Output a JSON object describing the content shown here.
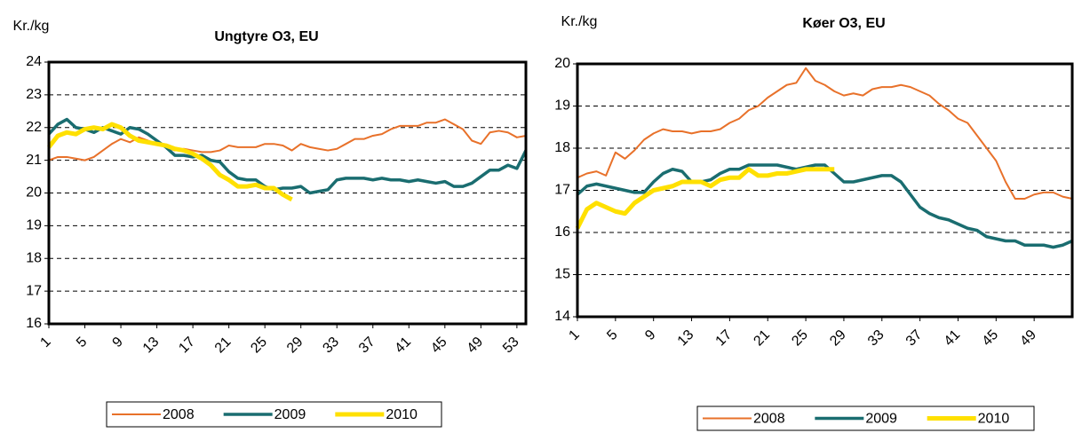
{
  "chart_data": [
    {
      "type": "line",
      "title": "Ungtyre O3, EU",
      "y_label": "Kr./kg",
      "x": [
        1,
        2,
        3,
        4,
        5,
        6,
        7,
        8,
        9,
        10,
        11,
        12,
        13,
        14,
        15,
        16,
        17,
        18,
        19,
        20,
        21,
        22,
        23,
        24,
        25,
        26,
        27,
        28,
        29,
        30,
        31,
        32,
        33,
        34,
        35,
        36,
        37,
        38,
        39,
        40,
        41,
        42,
        43,
        44,
        45,
        46,
        47,
        48,
        49,
        50,
        51,
        52,
        53,
        54
      ],
      "xlim": [
        1,
        54
      ],
      "xticks": [
        1,
        5,
        9,
        13,
        17,
        21,
        25,
        29,
        33,
        37,
        41,
        45,
        49,
        53
      ],
      "ylim": [
        16,
        24
      ],
      "yticks": [
        16,
        17,
        18,
        19,
        20,
        21,
        22,
        23,
        24
      ],
      "grid": true,
      "legend": "bottom",
      "series": [
        {
          "name": "2008",
          "color": "#e8712a",
          "values": [
            21.0,
            21.1,
            21.1,
            21.05,
            21.0,
            21.1,
            21.3,
            21.5,
            21.65,
            21.55,
            21.7,
            21.6,
            21.5,
            21.4,
            21.3,
            21.35,
            21.3,
            21.25,
            21.25,
            21.3,
            21.45,
            21.4,
            21.4,
            21.4,
            21.5,
            21.5,
            21.45,
            21.3,
            21.5,
            21.4,
            21.35,
            21.3,
            21.35,
            21.5,
            21.65,
            21.65,
            21.75,
            21.8,
            21.95,
            22.05,
            22.05,
            22.05,
            22.15,
            22.15,
            22.25,
            22.1,
            21.95,
            21.6,
            21.5,
            21.85,
            21.9,
            21.85,
            21.7,
            21.75
          ]
        },
        {
          "name": "2009",
          "color": "#1a6d70",
          "values": [
            21.8,
            22.1,
            22.25,
            22.0,
            21.95,
            21.85,
            22.0,
            21.9,
            21.8,
            22.0,
            21.95,
            21.8,
            21.6,
            21.4,
            21.15,
            21.15,
            21.1,
            21.15,
            21.0,
            20.95,
            20.65,
            20.45,
            20.4,
            20.4,
            20.2,
            20.1,
            20.15,
            20.15,
            20.2,
            20.0,
            20.05,
            20.1,
            20.4,
            20.45,
            20.45,
            20.45,
            20.4,
            20.45,
            20.4,
            20.4,
            20.35,
            20.4,
            20.35,
            20.3,
            20.35,
            20.2,
            20.2,
            20.3,
            20.5,
            20.7,
            20.7,
            20.85,
            20.75,
            21.3
          ]
        },
        {
          "name": "2010",
          "color": "#ffe000",
          "values": [
            21.4,
            21.75,
            21.85,
            21.8,
            21.95,
            22.0,
            21.95,
            22.1,
            22.0,
            21.75,
            21.6,
            21.55,
            21.5,
            21.45,
            21.35,
            21.3,
            21.2,
            21.05,
            20.85,
            20.55,
            20.4,
            20.2,
            20.2,
            20.25,
            20.15,
            20.15,
            19.95,
            19.8,
            null,
            null,
            null,
            null,
            null,
            null,
            null,
            null,
            null,
            null,
            null,
            null,
            null,
            null,
            null,
            null,
            null,
            null,
            null,
            null,
            null,
            null,
            null,
            null,
            null,
            null
          ]
        }
      ]
    },
    {
      "type": "line",
      "title": "Køer O3, EU",
      "y_label": "Kr./kg",
      "x": [
        1,
        2,
        3,
        4,
        5,
        6,
        7,
        8,
        9,
        10,
        11,
        12,
        13,
        14,
        15,
        16,
        17,
        18,
        19,
        20,
        21,
        22,
        23,
        24,
        25,
        26,
        27,
        28,
        29,
        30,
        31,
        32,
        33,
        34,
        35,
        36,
        37,
        38,
        39,
        40,
        41,
        42,
        43,
        44,
        45,
        46,
        47,
        48,
        49,
        50,
        51,
        52,
        53
      ],
      "xlim": [
        1,
        53
      ],
      "xticks": [
        1,
        5,
        9,
        13,
        17,
        21,
        25,
        29,
        33,
        37,
        41,
        45,
        49
      ],
      "ylim": [
        14,
        20
      ],
      "yticks": [
        14,
        15,
        16,
        17,
        18,
        19,
        20
      ],
      "grid": true,
      "legend": "bottom",
      "series": [
        {
          "name": "2008",
          "color": "#e8712a",
          "values": [
            17.3,
            17.4,
            17.45,
            17.35,
            17.9,
            17.75,
            17.95,
            18.2,
            18.35,
            18.45,
            18.4,
            18.4,
            18.35,
            18.4,
            18.4,
            18.45,
            18.6,
            18.7,
            18.9,
            19.0,
            19.2,
            19.35,
            19.5,
            19.55,
            19.9,
            19.6,
            19.5,
            19.35,
            19.25,
            19.3,
            19.25,
            19.4,
            19.45,
            19.45,
            19.5,
            19.45,
            19.35,
            19.25,
            19.05,
            18.9,
            18.7,
            18.6,
            18.3,
            18.0,
            17.7,
            17.2,
            16.8,
            16.8,
            16.9,
            16.95,
            16.95,
            16.85,
            16.8
          ]
        },
        {
          "name": "2009",
          "color": "#1a6d70",
          "values": [
            16.9,
            17.1,
            17.15,
            17.1,
            17.05,
            17.0,
            16.95,
            16.95,
            17.2,
            17.4,
            17.5,
            17.45,
            17.2,
            17.2,
            17.25,
            17.4,
            17.5,
            17.5,
            17.6,
            17.6,
            17.6,
            17.6,
            17.55,
            17.5,
            17.55,
            17.6,
            17.6,
            17.4,
            17.2,
            17.2,
            17.25,
            17.3,
            17.35,
            17.35,
            17.2,
            16.9,
            16.6,
            16.45,
            16.35,
            16.3,
            16.2,
            16.1,
            16.05,
            15.9,
            15.85,
            15.8,
            15.8,
            15.7,
            15.7,
            15.7,
            15.65,
            15.7,
            15.8
          ]
        },
        {
          "name": "2010",
          "color": "#ffe000",
          "values": [
            16.1,
            16.55,
            16.7,
            16.6,
            16.5,
            16.45,
            16.7,
            16.85,
            17.0,
            17.05,
            17.1,
            17.2,
            17.2,
            17.2,
            17.1,
            17.25,
            17.3,
            17.3,
            17.5,
            17.35,
            17.35,
            17.4,
            17.4,
            17.45,
            17.5,
            17.5,
            17.5,
            17.5,
            null,
            null,
            null,
            null,
            null,
            null,
            null,
            null,
            null,
            null,
            null,
            null,
            null,
            null,
            null,
            null,
            null,
            null,
            null,
            null,
            null,
            null,
            null,
            null,
            null
          ]
        }
      ]
    }
  ]
}
